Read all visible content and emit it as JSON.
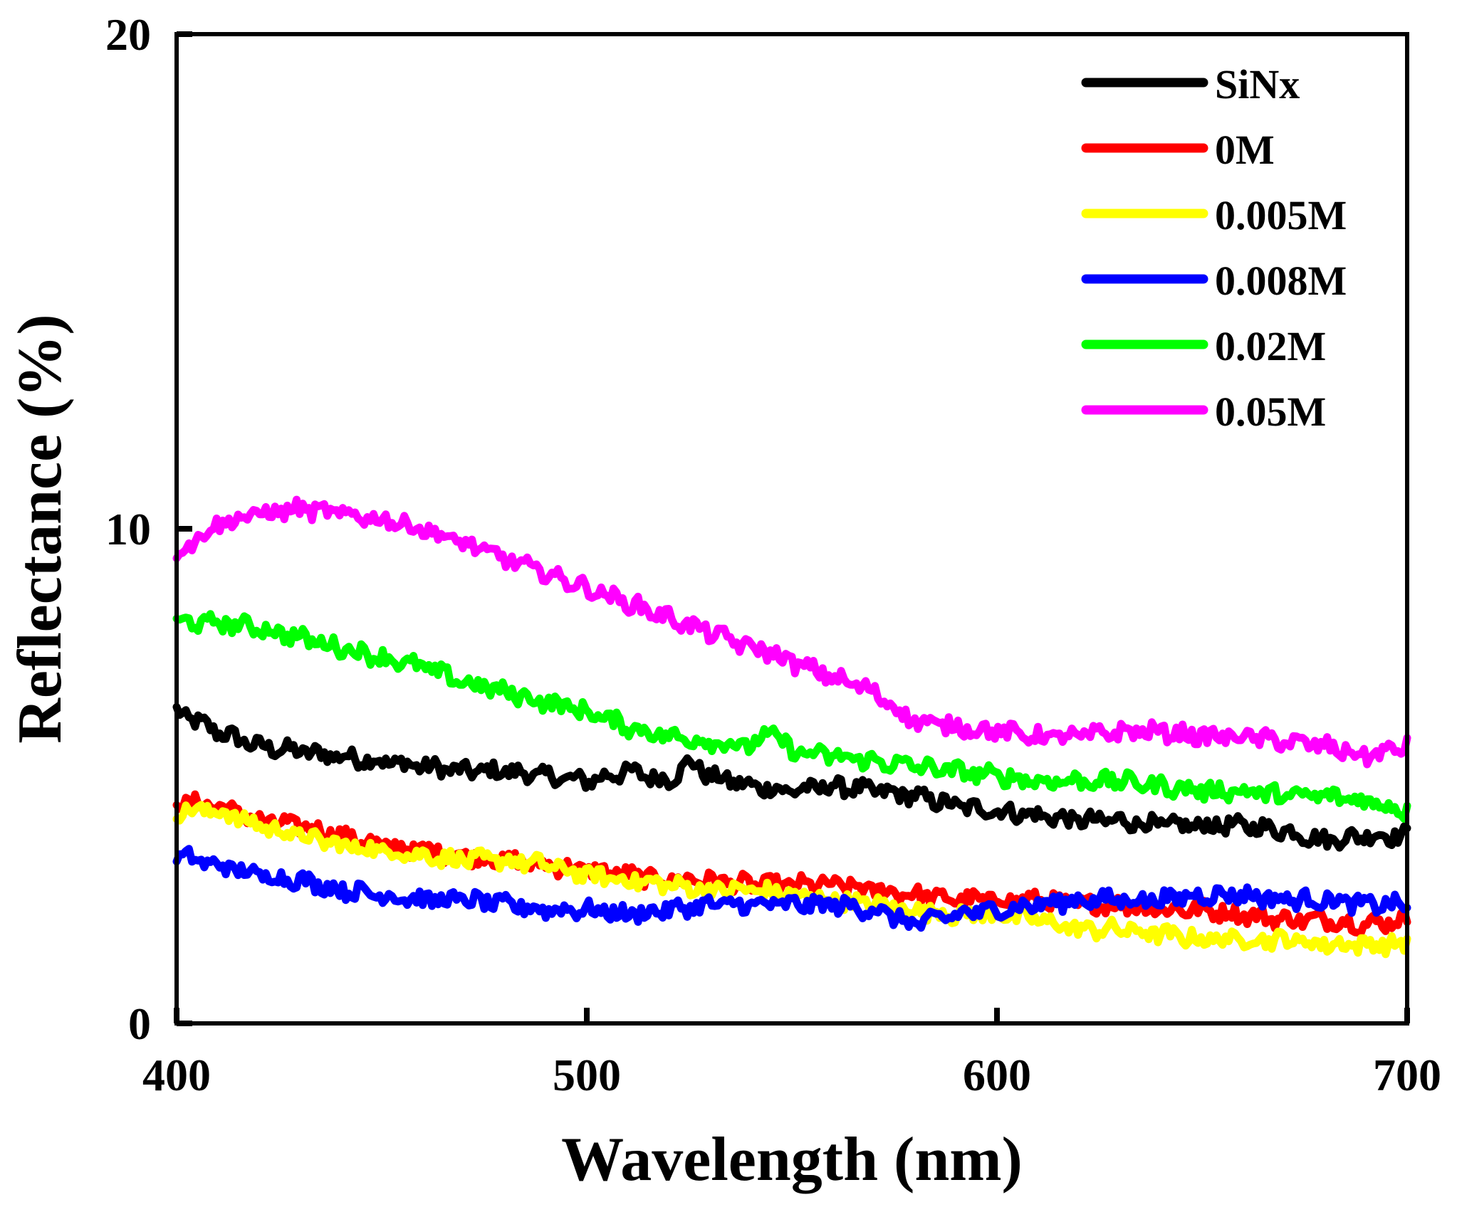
{
  "chart_data": {
    "type": "line",
    "title": "",
    "xlabel": "Wavelength (nm)",
    "ylabel": "Reflectance (%)",
    "xlim": [
      400,
      700
    ],
    "ylim": [
      0,
      20
    ],
    "xticks": [
      400,
      500,
      600,
      700
    ],
    "yticks": [
      0,
      10,
      20
    ],
    "xtick_labels": [
      "400",
      "500",
      "600",
      "700"
    ],
    "ytick_labels": [
      "0",
      "10",
      "20"
    ],
    "grid": false,
    "legend_position": "top-right",
    "series": [
      {
        "name": "SiNx",
        "color": "#000000",
        "points": [
          [
            400,
            6.3
          ],
          [
            410,
            5.9
          ],
          [
            420,
            5.6
          ],
          [
            430,
            5.5
          ],
          [
            440,
            5.4
          ],
          [
            450,
            5.3
          ],
          [
            460,
            5.2
          ],
          [
            470,
            5.1
          ],
          [
            480,
            5.1
          ],
          [
            490,
            5.0
          ],
          [
            500,
            4.9
          ],
          [
            510,
            5.1
          ],
          [
            520,
            4.9
          ],
          [
            525,
            5.3
          ],
          [
            530,
            5.0
          ],
          [
            540,
            4.8
          ],
          [
            550,
            4.7
          ],
          [
            560,
            4.8
          ],
          [
            570,
            4.7
          ],
          [
            580,
            4.6
          ],
          [
            590,
            4.4
          ],
          [
            600,
            4.3
          ],
          [
            610,
            4.2
          ],
          [
            620,
            4.1
          ],
          [
            630,
            4.1
          ],
          [
            640,
            4.0
          ],
          [
            650,
            4.0
          ],
          [
            660,
            4.0
          ],
          [
            670,
            3.9
          ],
          [
            680,
            3.7
          ],
          [
            690,
            3.8
          ],
          [
            700,
            3.8
          ]
        ]
      },
      {
        "name": "0M",
        "color": "#ff0000",
        "points": [
          [
            400,
            4.5
          ],
          [
            410,
            4.4
          ],
          [
            420,
            4.1
          ],
          [
            430,
            4.0
          ],
          [
            440,
            3.8
          ],
          [
            450,
            3.6
          ],
          [
            460,
            3.5
          ],
          [
            470,
            3.4
          ],
          [
            480,
            3.3
          ],
          [
            490,
            3.2
          ],
          [
            500,
            3.1
          ],
          [
            510,
            3.0
          ],
          [
            520,
            2.9
          ],
          [
            530,
            2.9
          ],
          [
            540,
            2.8
          ],
          [
            550,
            2.8
          ],
          [
            560,
            2.8
          ],
          [
            570,
            2.7
          ],
          [
            580,
            2.6
          ],
          [
            590,
            2.5
          ],
          [
            600,
            2.5
          ],
          [
            610,
            2.5
          ],
          [
            620,
            2.4
          ],
          [
            630,
            2.4
          ],
          [
            640,
            2.3
          ],
          [
            650,
            2.3
          ],
          [
            660,
            2.2
          ],
          [
            670,
            2.1
          ],
          [
            680,
            2.1
          ],
          [
            690,
            2.0
          ],
          [
            700,
            2.1
          ]
        ]
      },
      {
        "name": "0.005M",
        "color": "#ffff00",
        "points": [
          [
            400,
            4.3
          ],
          [
            410,
            4.3
          ],
          [
            420,
            4.0
          ],
          [
            430,
            3.8
          ],
          [
            440,
            3.6
          ],
          [
            450,
            3.5
          ],
          [
            460,
            3.4
          ],
          [
            470,
            3.3
          ],
          [
            480,
            3.3
          ],
          [
            490,
            3.2
          ],
          [
            500,
            3.0
          ],
          [
            510,
            2.9
          ],
          [
            520,
            2.8
          ],
          [
            530,
            2.7
          ],
          [
            540,
            2.7
          ],
          [
            550,
            2.6
          ],
          [
            560,
            2.5
          ],
          [
            570,
            2.4
          ],
          [
            580,
            2.3
          ],
          [
            590,
            2.2
          ],
          [
            600,
            2.2
          ],
          [
            610,
            2.1
          ],
          [
            620,
            1.9
          ],
          [
            630,
            1.9
          ],
          [
            640,
            1.8
          ],
          [
            650,
            1.7
          ],
          [
            660,
            1.7
          ],
          [
            670,
            1.7
          ],
          [
            680,
            1.6
          ],
          [
            690,
            1.6
          ],
          [
            700,
            1.6
          ]
        ]
      },
      {
        "name": "0.008M",
        "color": "#0000ff",
        "points": [
          [
            400,
            3.4
          ],
          [
            410,
            3.2
          ],
          [
            420,
            3.0
          ],
          [
            430,
            2.9
          ],
          [
            440,
            2.7
          ],
          [
            450,
            2.6
          ],
          [
            460,
            2.5
          ],
          [
            470,
            2.5
          ],
          [
            480,
            2.4
          ],
          [
            490,
            2.3
          ],
          [
            500,
            2.3
          ],
          [
            510,
            2.2
          ],
          [
            520,
            2.3
          ],
          [
            530,
            2.4
          ],
          [
            540,
            2.4
          ],
          [
            550,
            2.4
          ],
          [
            560,
            2.4
          ],
          [
            570,
            2.3
          ],
          [
            580,
            2.0
          ],
          [
            590,
            2.2
          ],
          [
            600,
            2.3
          ],
          [
            610,
            2.4
          ],
          [
            620,
            2.5
          ],
          [
            630,
            2.5
          ],
          [
            640,
            2.5
          ],
          [
            650,
            2.6
          ],
          [
            660,
            2.6
          ],
          [
            670,
            2.5
          ],
          [
            680,
            2.5
          ],
          [
            690,
            2.4
          ],
          [
            700,
            2.4
          ]
        ]
      },
      {
        "name": "0.02M",
        "color": "#00ff00",
        "points": [
          [
            400,
            8.1
          ],
          [
            410,
            8.1
          ],
          [
            420,
            8.0
          ],
          [
            430,
            7.8
          ],
          [
            440,
            7.6
          ],
          [
            450,
            7.4
          ],
          [
            460,
            7.2
          ],
          [
            470,
            6.9
          ],
          [
            480,
            6.7
          ],
          [
            490,
            6.5
          ],
          [
            500,
            6.3
          ],
          [
            510,
            6.0
          ],
          [
            520,
            5.8
          ],
          [
            530,
            5.7
          ],
          [
            540,
            5.6
          ],
          [
            545,
            5.9
          ],
          [
            550,
            5.5
          ],
          [
            560,
            5.4
          ],
          [
            570,
            5.3
          ],
          [
            580,
            5.2
          ],
          [
            590,
            5.1
          ],
          [
            600,
            5.0
          ],
          [
            610,
            4.9
          ],
          [
            620,
            4.9
          ],
          [
            630,
            4.9
          ],
          [
            640,
            4.8
          ],
          [
            650,
            4.7
          ],
          [
            660,
            4.7
          ],
          [
            670,
            4.6
          ],
          [
            680,
            4.6
          ],
          [
            690,
            4.5
          ],
          [
            700,
            4.3
          ]
        ]
      },
      {
        "name": "0.05M",
        "color": "#ff00ff",
        "points": [
          [
            400,
            9.5
          ],
          [
            410,
            10.1
          ],
          [
            420,
            10.3
          ],
          [
            430,
            10.4
          ],
          [
            440,
            10.3
          ],
          [
            450,
            10.2
          ],
          [
            460,
            10.0
          ],
          [
            470,
            9.7
          ],
          [
            480,
            9.4
          ],
          [
            490,
            9.1
          ],
          [
            500,
            8.8
          ],
          [
            510,
            8.5
          ],
          [
            520,
            8.2
          ],
          [
            530,
            7.9
          ],
          [
            540,
            7.6
          ],
          [
            545,
            7.5
          ],
          [
            550,
            7.3
          ],
          [
            560,
            7.0
          ],
          [
            570,
            6.7
          ],
          [
            580,
            6.1
          ],
          [
            590,
            6.0
          ],
          [
            600,
            5.9
          ],
          [
            610,
            5.8
          ],
          [
            620,
            5.8
          ],
          [
            630,
            5.9
          ],
          [
            640,
            5.9
          ],
          [
            650,
            5.8
          ],
          [
            660,
            5.8
          ],
          [
            670,
            5.7
          ],
          [
            680,
            5.6
          ],
          [
            690,
            5.4
          ],
          [
            700,
            5.6
          ]
        ]
      }
    ]
  }
}
